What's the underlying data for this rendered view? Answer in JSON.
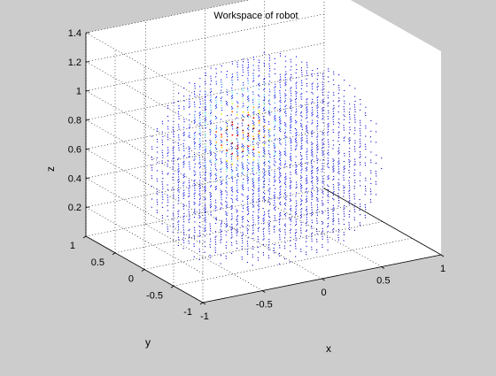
{
  "figure": {
    "background": "#cccccc",
    "axes_color": "#ffffff",
    "grid_color": "#000000"
  },
  "chart_data": {
    "type": "scatter",
    "subtype": "3d-scatter",
    "title": "Workspace of robot",
    "xlabel": "x",
    "ylabel": "y",
    "zlabel": "z",
    "xlim": [
      -1,
      1
    ],
    "ylim": [
      -1,
      1
    ],
    "zlim": [
      0,
      1.4
    ],
    "xticks": [
      "-1",
      "-0.5",
      "0",
      "0.5",
      "1"
    ],
    "yticks": [
      "-1",
      "-0.5",
      "0",
      "0.5",
      "1"
    ],
    "zticks": [
      "0.2",
      "0.4",
      "0.6",
      "0.8",
      "1",
      "1.2",
      "1.4"
    ],
    "grid": true,
    "box": true,
    "view": "3d-default",
    "colormap": "jet",
    "color_by": "point density",
    "colormap_stops": [
      "#00008f",
      "#0000ff",
      "#00ffff",
      "#ffff00",
      "#ff0000",
      "#800000"
    ],
    "density_peak": {
      "x": -0.1,
      "y": 0.2,
      "z": 0.75
    },
    "workspace_shape": "sphere",
    "workspace_center": {
      "x": 0,
      "y": 0,
      "z": 0.55
    },
    "workspace_radius": 0.9
  }
}
